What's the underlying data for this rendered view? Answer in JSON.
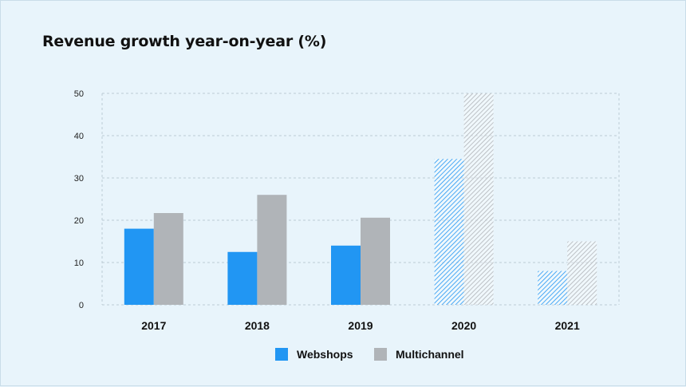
{
  "chart_data": {
    "type": "bar",
    "title": "Revenue growth year-on-year (%)",
    "xlabel": "",
    "ylabel": "",
    "categories": [
      "2017",
      "2018",
      "2019",
      "2020",
      "2021"
    ],
    "ylim": [
      0,
      50
    ],
    "yticks": [
      0,
      10,
      20,
      30,
      40,
      50
    ],
    "grid": true,
    "legend": "bottom-center",
    "hatched_categories": [
      "2020",
      "2021"
    ],
    "series": [
      {
        "name": "Webshops",
        "color": "#2196f3",
        "values": [
          18,
          12.5,
          14,
          34.5,
          8
        ]
      },
      {
        "name": "Multichannel",
        "color": "#b0b4b8",
        "values": [
          21.7,
          26,
          20.6,
          50,
          15
        ]
      }
    ]
  }
}
